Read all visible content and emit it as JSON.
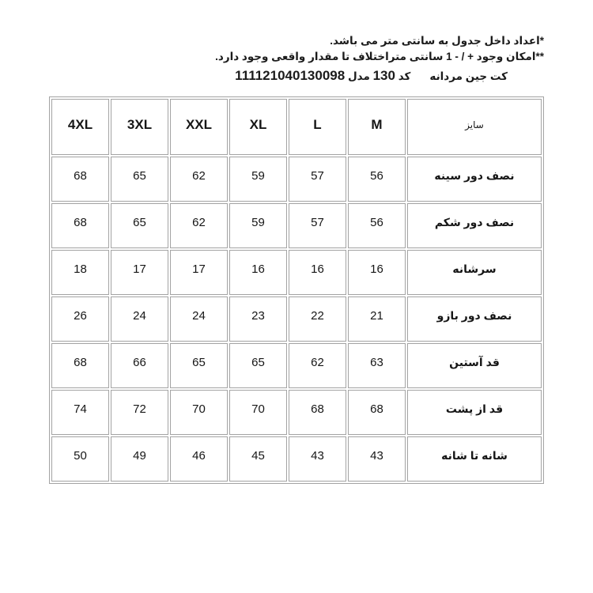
{
  "notes": {
    "line1": "*اعداد داخل جدول به سانتی متر می باشد.",
    "line2": "**امکان وجود + / - 1 سانتی متراختلاف تا مقدار واقعی وجود دارد."
  },
  "product": {
    "name": "کت جین مردانه",
    "code_label": "کد",
    "code": "130",
    "model_label": "مدل",
    "model": "111121040130098"
  },
  "size_table": {
    "label_header": "سایز",
    "sizes_right_to_left": [
      "M",
      "L",
      "XL",
      "XXL",
      "3XL",
      "4XL"
    ],
    "rows": [
      {
        "label": "نصف دور سینه",
        "values": [
          56,
          57,
          59,
          62,
          65,
          68
        ]
      },
      {
        "label": "نصف دور شکم",
        "values": [
          56,
          57,
          59,
          62,
          65,
          68
        ]
      },
      {
        "label": "سرشانه",
        "values": [
          16,
          16,
          16,
          17,
          17,
          18
        ]
      },
      {
        "label": "نصف دور بازو",
        "values": [
          21,
          22,
          23,
          24,
          24,
          26
        ]
      },
      {
        "label": "قد آستین",
        "values": [
          63,
          62,
          65,
          65,
          66,
          68
        ]
      },
      {
        "label": "قد از پشت",
        "values": [
          68,
          68,
          70,
          70,
          72,
          74
        ]
      },
      {
        "label": "شانه تا شانه",
        "values": [
          43,
          43,
          45,
          46,
          49,
          50
        ]
      }
    ],
    "colors": {
      "border": "#a3a3a3",
      "text": "#161616",
      "background": "#ffffff"
    }
  }
}
